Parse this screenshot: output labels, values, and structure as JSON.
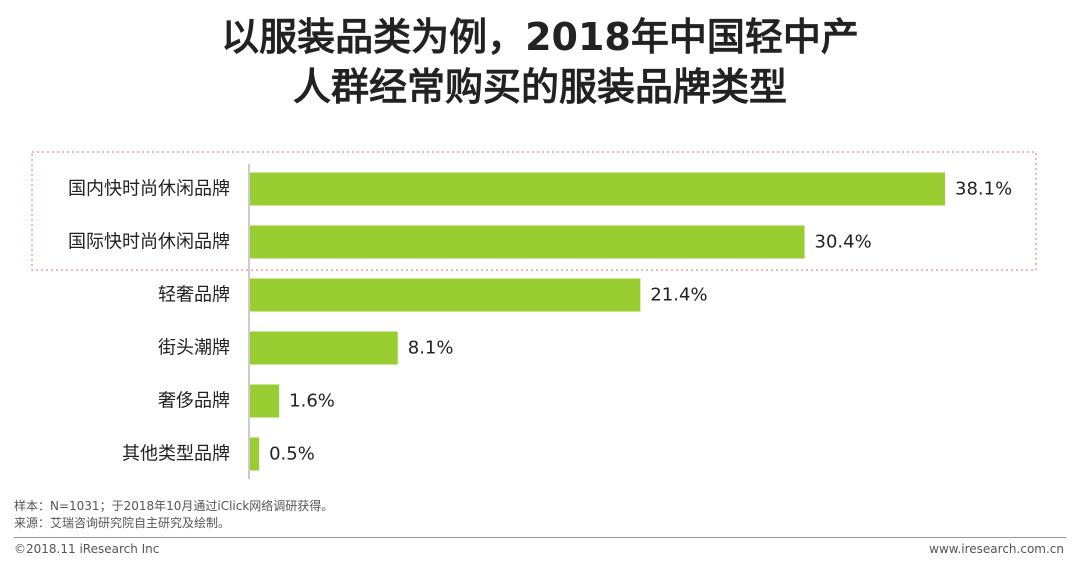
{
  "title": {
    "line1": "以服装品类为例，2018年中国轻中产",
    "line2": "人群经常购买的服装品牌类型"
  },
  "chart_data": {
    "type": "bar",
    "orientation": "horizontal",
    "categories": [
      "国内快时尚休闲品牌",
      "国际快时尚休闲品牌",
      "轻奢品牌",
      "街头潮牌",
      "奢侈品牌",
      "其他类型品牌"
    ],
    "values": [
      38.1,
      30.4,
      21.4,
      8.1,
      1.6,
      0.5
    ],
    "value_labels": [
      "38.1%",
      "30.4%",
      "21.4%",
      "8.1%",
      "1.6%",
      "0.5%"
    ],
    "unit": "%",
    "bar_color": "#9ACD32",
    "highlight_border_color": "#E8A0A8",
    "highlighted_categories": [
      "国内快时尚休闲品牌",
      "国际快时尚休闲品牌"
    ],
    "xlim": [
      0,
      38.1
    ]
  },
  "notes": {
    "sample": "样本：N=1031；于2018年10月通过iClick网络调研获得。",
    "source": "来源：艾瑞咨询研究院自主研究及绘制。"
  },
  "footer": {
    "copyright": "©2018.11 iResearch Inc",
    "website": "www.iresearch.com.cn"
  }
}
